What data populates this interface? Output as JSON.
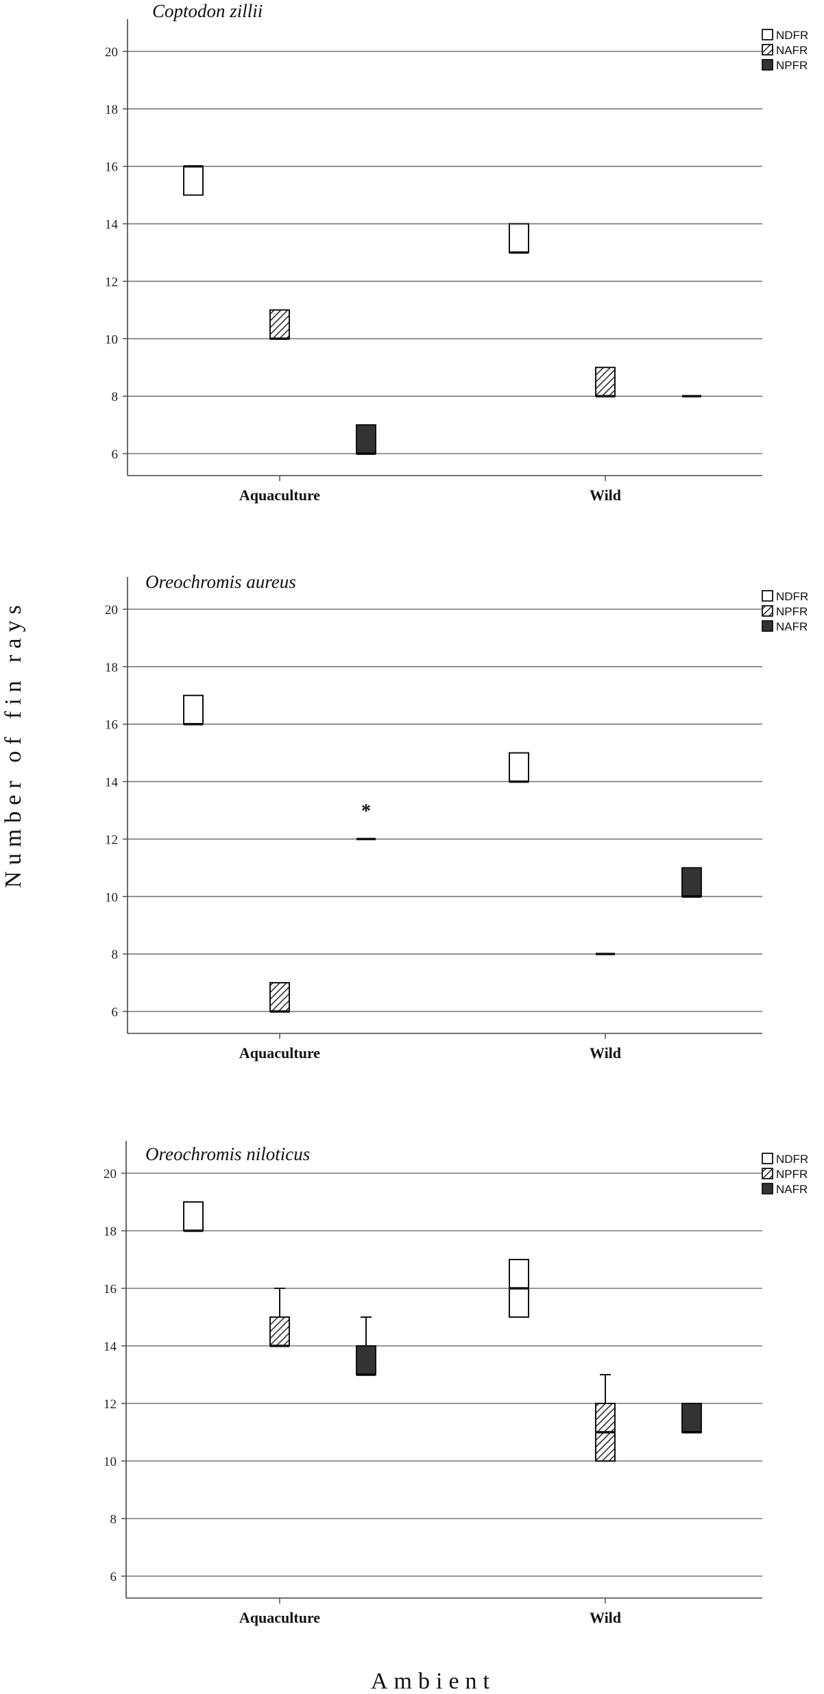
{
  "ylabel": "Number of fin rays",
  "xlabel": "Ambient",
  "chart_data": [
    {
      "type": "box",
      "title": "Coptodon zillii",
      "categories": [
        "Aquaculture",
        "Wild"
      ],
      "ylim": [
        5.3,
        20.7
      ],
      "yticks": [
        6,
        8,
        10,
        12,
        14,
        16,
        18,
        20
      ],
      "grid": true,
      "legend_position": "top-right",
      "series": [
        {
          "name": "NDFR",
          "fill": "white",
          "boxes": [
            {
              "q1": 15,
              "median": 16,
              "q3": 16
            },
            {
              "q1": 13,
              "median": 13,
              "q3": 14
            }
          ]
        },
        {
          "name": "NAFR",
          "fill": "hatch",
          "boxes": [
            {
              "q1": 10,
              "median": 10,
              "q3": 11
            },
            {
              "q1": 8,
              "median": 8,
              "q3": 9
            }
          ]
        },
        {
          "name": "NPFR",
          "fill": "dark",
          "boxes": [
            {
              "q1": 6,
              "median": 6,
              "q3": 7
            },
            {
              "q1": 8,
              "median": 8,
              "q3": 8
            }
          ]
        }
      ],
      "outliers": []
    },
    {
      "type": "box",
      "title": "Oreochromis aureus",
      "categories": [
        "Aquaculture",
        "Wild"
      ],
      "ylim": [
        5.3,
        20.7
      ],
      "yticks": [
        6,
        8,
        10,
        12,
        14,
        16,
        18,
        20
      ],
      "grid": true,
      "legend_position": "top-right",
      "series": [
        {
          "name": "NDFR",
          "fill": "white",
          "boxes": [
            {
              "q1": 16,
              "median": 16,
              "q3": 17
            },
            {
              "q1": 14,
              "median": 14,
              "q3": 15
            }
          ]
        },
        {
          "name": "NPFR",
          "fill": "hatch",
          "boxes": [
            {
              "q1": 6,
              "median": 6,
              "q3": 7
            },
            {
              "q1": 8,
              "median": 8,
              "q3": 8
            }
          ]
        },
        {
          "name": "NAFR",
          "fill": "dark",
          "boxes": [
            {
              "q1": 12,
              "median": 12,
              "q3": 12
            },
            {
              "q1": 10,
              "median": 10,
              "q3": 11
            }
          ]
        }
      ],
      "outliers": [
        {
          "category": "Aquaculture",
          "series": "NAFR",
          "value": 13,
          "marker": "*"
        }
      ]
    },
    {
      "type": "box",
      "title": "Oreochromis niloticus",
      "categories": [
        "Aquaculture",
        "Wild"
      ],
      "ylim": [
        5.3,
        20.7
      ],
      "yticks": [
        6,
        8,
        10,
        12,
        14,
        16,
        18,
        20
      ],
      "grid": true,
      "legend_position": "top-right",
      "series": [
        {
          "name": "NDFR",
          "fill": "white",
          "boxes": [
            {
              "q1": 18,
              "median": 18,
              "q3": 19
            },
            {
              "q1": 15,
              "median": 16,
              "q3": 17
            }
          ]
        },
        {
          "name": "NPFR",
          "fill": "hatch",
          "boxes": [
            {
              "q1": 14,
              "median": 14,
              "q3": 15,
              "whisker_high": 16
            },
            {
              "q1": 10,
              "median": 11,
              "q3": 12,
              "whisker_high": 13
            }
          ]
        },
        {
          "name": "NAFR",
          "fill": "dark",
          "boxes": [
            {
              "q1": 13,
              "median": 13,
              "q3": 14,
              "whisker_high": 15
            },
            {
              "q1": 11,
              "median": 11,
              "q3": 12
            }
          ]
        }
      ],
      "outliers": []
    }
  ]
}
